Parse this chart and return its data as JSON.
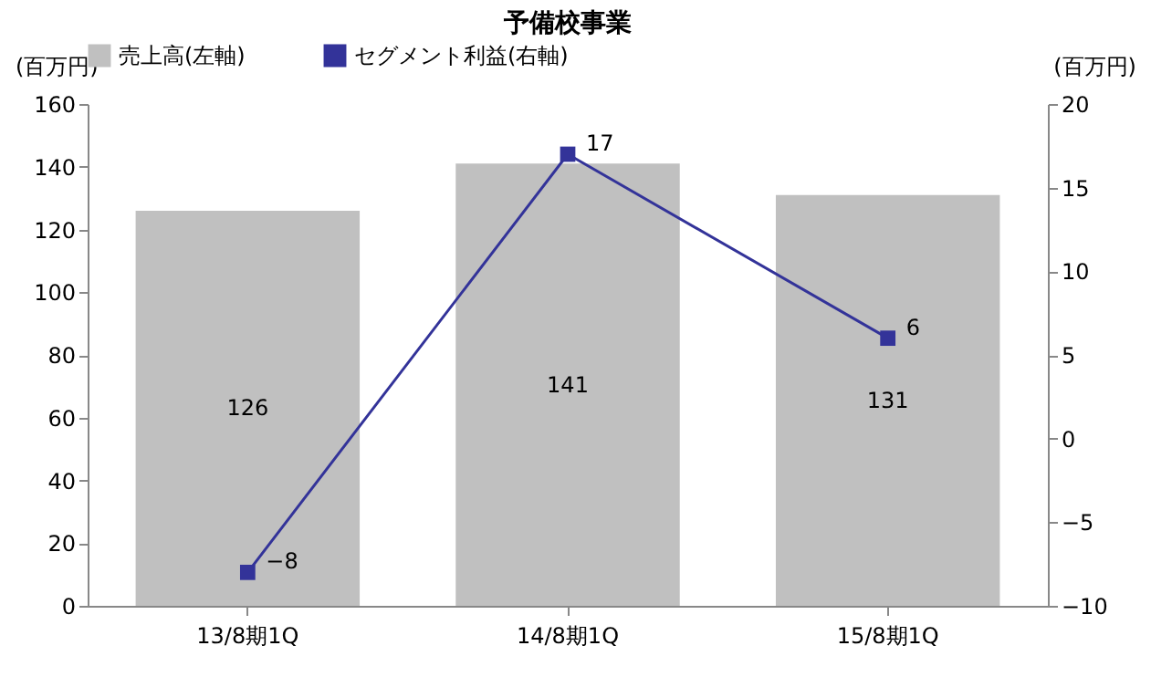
{
  "chart_data": {
    "type": "bar",
    "title": "予備校事業",
    "categories": [
      "13/8期1Q",
      "14/8期1Q",
      "15/8期1Q"
    ],
    "series": [
      {
        "name": "売上高(左軸)",
        "color": "#c0c0c0",
        "values": [
          126,
          141,
          131
        ]
      },
      {
        "name": "セグメント利益(右軸)",
        "type": "line",
        "axis": "y2",
        "color": "#333399",
        "values": [
          -8,
          17,
          6
        ]
      }
    ],
    "ylabel": "(百万円)",
    "y2label": "(百万円)",
    "ylim": [
      0,
      160
    ],
    "yticks": [
      0,
      20,
      40,
      60,
      80,
      100,
      120,
      140,
      160
    ],
    "y2lim": [
      -10,
      20
    ],
    "y2ticks": [
      -10,
      -5,
      0,
      5,
      10,
      15,
      20
    ],
    "marker": "square",
    "data_labels": true,
    "legend": "top",
    "grid": false
  }
}
